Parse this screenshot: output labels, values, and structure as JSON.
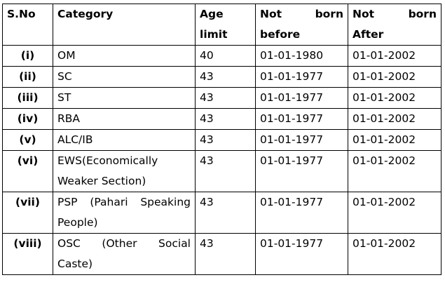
{
  "headers": {
    "sno": "S.No",
    "category": "Category",
    "age_limit_line1": "Age",
    "age_limit_line2": "limit",
    "not_born_before_line1": "Not born",
    "not_born_before_line2": "before",
    "not_born_after_line1": "Not born",
    "not_born_after_line2": "After"
  },
  "rows": [
    {
      "sno": "(i)",
      "category_lines": [
        "OM"
      ],
      "age": "40",
      "before": "01-01-1980",
      "after": "01-01-2002"
    },
    {
      "sno": "(ii)",
      "category_lines": [
        "SC"
      ],
      "age": "43",
      "before": "01-01-1977",
      "after": "01-01-2002"
    },
    {
      "sno": "(iii)",
      "category_lines": [
        "ST"
      ],
      "age": "43",
      "before": "01-01-1977",
      "after": "01-01-2002"
    },
    {
      "sno": "(iv)",
      "category_lines": [
        "RBA"
      ],
      "age": "43",
      "before": "01-01-1977",
      "after": "01-01-2002"
    },
    {
      "sno": "(v)",
      "category_lines": [
        "ALC/IB"
      ],
      "age": "43",
      "before": "01-01-1977",
      "after": "01-01-2002"
    },
    {
      "sno": "(vi)",
      "category_lines": [
        "EWS(Economically",
        "Weaker Section)"
      ],
      "age": "43",
      "before": "01-01-1977",
      "after": "01-01-2002"
    },
    {
      "sno": "(vii)",
      "category_lines": [
        "PSP (Pahari Speaking",
        "People)"
      ],
      "age": "43",
      "before": "01-01-1977",
      "after": "01-01-2002"
    },
    {
      "sno": "(viii)",
      "category_lines": [
        "OSC (Other Social",
        "Caste)"
      ],
      "age": "43",
      "before": "01-01-1977",
      "after": "01-01-2002"
    }
  ]
}
